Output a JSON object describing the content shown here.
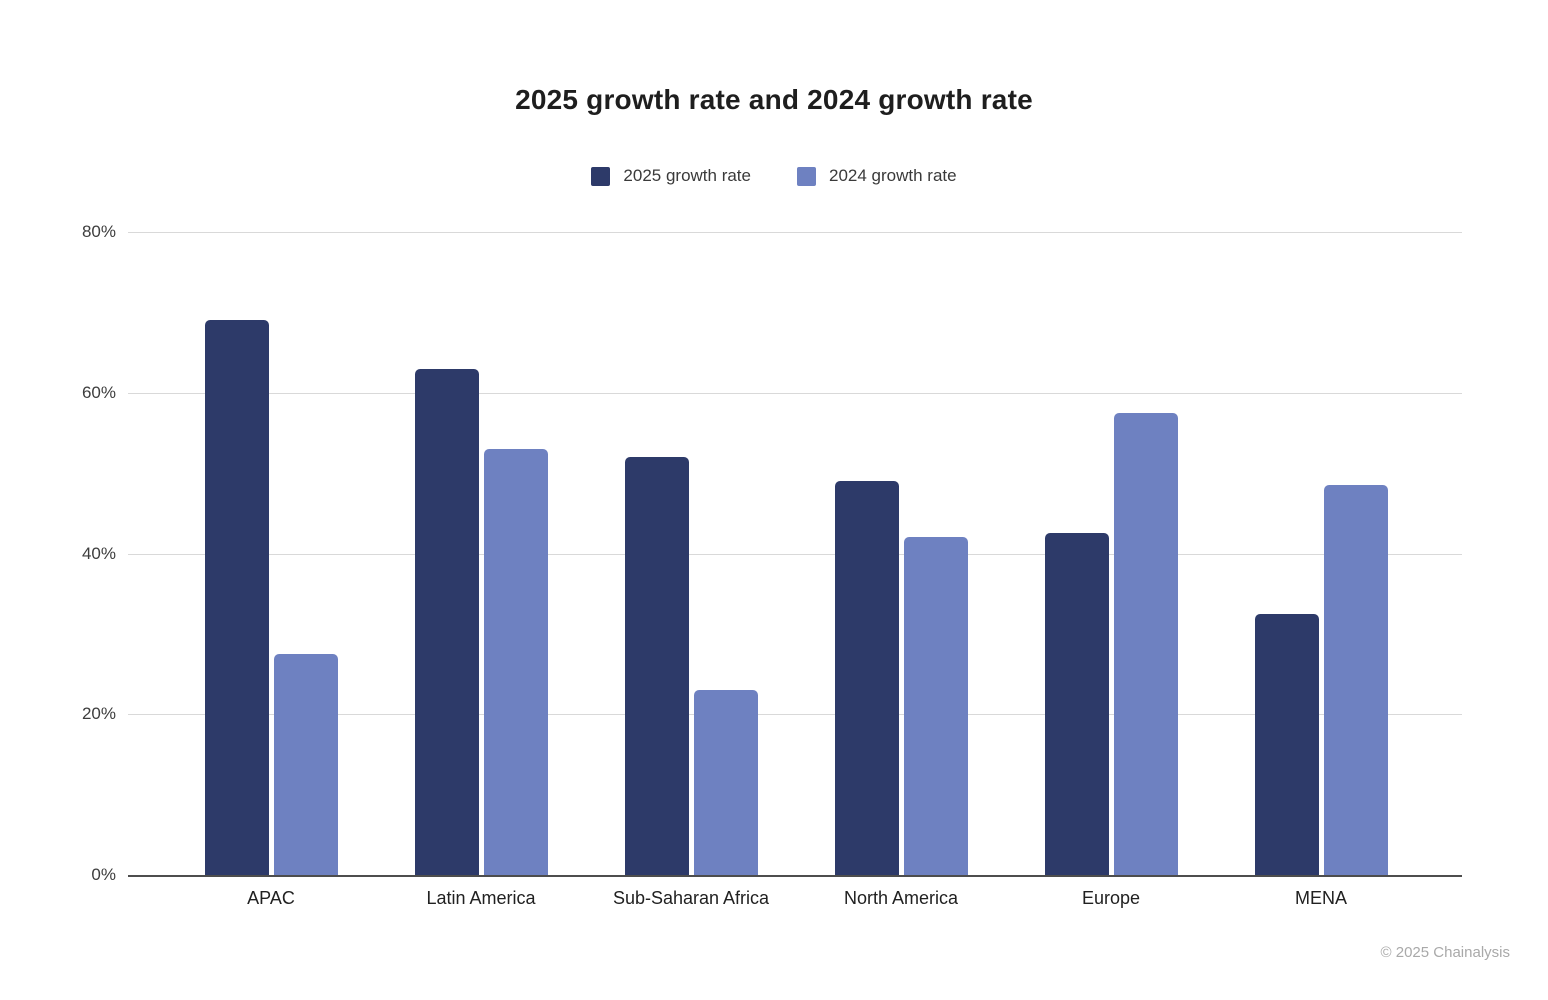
{
  "page": {
    "copyright": "© 2025 Chainalysis"
  },
  "chart_data": {
    "type": "bar",
    "title": "2025 growth rate and 2024 growth rate",
    "categories": [
      "APAC",
      "Latin America",
      "Sub-Saharan Africa",
      "North America",
      "Europe",
      "MENA"
    ],
    "series": [
      {
        "name": "2025 growth rate",
        "color": "#2d3a69",
        "values": [
          69,
          63,
          52,
          49,
          42.5,
          32.5
        ]
      },
      {
        "name": "2024 growth rate",
        "color": "#6e81c1",
        "values": [
          27.5,
          53,
          23,
          42,
          57.5,
          48.5
        ]
      }
    ],
    "xlabel": "",
    "ylabel": "",
    "ylim": [
      0,
      80
    ],
    "y_ticks": [
      "0%",
      "20%",
      "40%",
      "60%",
      "80%"
    ],
    "grid": true,
    "legend_position": "top",
    "colors": {
      "gridline": "#d9d9d9",
      "axis_line": "#4d4d4d",
      "title_text": "#1e1e1e",
      "tick_text": "#3d3d3d",
      "category_text": "#212121",
      "legend_text": "#3a3a3a",
      "copyright_text": "#a9a9a9",
      "background": "#ffffff"
    }
  }
}
